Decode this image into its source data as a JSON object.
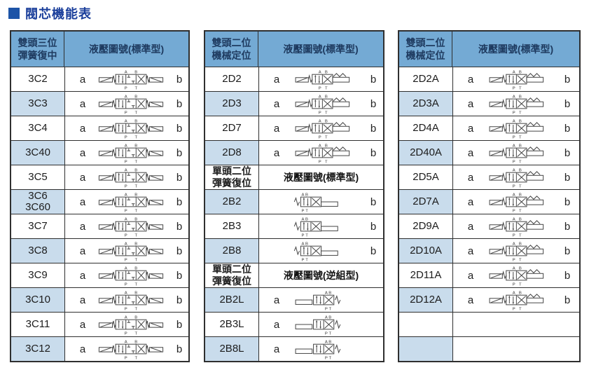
{
  "title": {
    "text": "閥芯機能表"
  },
  "colors": {
    "title_color": "#1b3f9b",
    "title_square": "#1d54a7",
    "header_bg": "#74aad4",
    "header_text": "#1e3a5f",
    "alt_row_bg": "#c9dcec",
    "border": "#2f2f2f",
    "diagram_stroke": "#464646"
  },
  "tables": [
    {
      "header": {
        "col1_line1": "雙頭三位",
        "col1_line2": "彈簧復中",
        "col2": "液壓圖號(標準型)"
      },
      "rows": [
        {
          "type": "row",
          "code": "3C2",
          "code2": "",
          "left": "a",
          "right": "b",
          "diagram": "valve-3pos-spring-centered-icon",
          "shaded": false
        },
        {
          "type": "row",
          "code": "3C3",
          "code2": "",
          "left": "a",
          "right": "b",
          "diagram": "valve-3pos-spring-centered-icon",
          "shaded": true
        },
        {
          "type": "row",
          "code": "3C4",
          "code2": "",
          "left": "a",
          "right": "b",
          "diagram": "valve-3pos-spring-centered-icon",
          "shaded": false
        },
        {
          "type": "row",
          "code": "3C40",
          "code2": "",
          "left": "a",
          "right": "b",
          "diagram": "valve-3pos-spring-centered-icon",
          "shaded": true
        },
        {
          "type": "row",
          "code": "3C5",
          "code2": "",
          "left": "a",
          "right": "b",
          "diagram": "valve-3pos-spring-centered-icon",
          "shaded": false
        },
        {
          "type": "row",
          "code": "3C6",
          "code2": "3C60",
          "left": "a",
          "right": "b",
          "diagram": "valve-3pos-spring-centered-icon",
          "shaded": true
        },
        {
          "type": "row",
          "code": "3C7",
          "code2": "",
          "left": "a",
          "right": "b",
          "diagram": "valve-3pos-spring-centered-icon",
          "shaded": false
        },
        {
          "type": "row",
          "code": "3C8",
          "code2": "",
          "left": "a",
          "right": "b",
          "diagram": "valve-3pos-spring-centered-icon",
          "shaded": true
        },
        {
          "type": "row",
          "code": "3C9",
          "code2": "",
          "left": "a",
          "right": "b",
          "diagram": "valve-3pos-spring-centered-icon",
          "shaded": false
        },
        {
          "type": "row",
          "code": "3C10",
          "code2": "",
          "left": "a",
          "right": "b",
          "diagram": "valve-3pos-spring-centered-icon",
          "shaded": true
        },
        {
          "type": "row",
          "code": "3C11",
          "code2": "",
          "left": "a",
          "right": "b",
          "diagram": "valve-3pos-spring-centered-icon",
          "shaded": false
        },
        {
          "type": "row",
          "code": "3C12",
          "code2": "",
          "left": "a",
          "right": "b",
          "diagram": "valve-3pos-spring-centered-icon",
          "shaded": true
        }
      ]
    },
    {
      "header": {
        "col1_line1": "雙頭二位",
        "col1_line2": "機械定位",
        "col2": "液壓圖號(標準型)"
      },
      "rows": [
        {
          "type": "row",
          "code": "2D2",
          "code2": "",
          "left": "a",
          "right": "b",
          "diagram": "valve-2pos-detent-icon",
          "shaded": false
        },
        {
          "type": "row",
          "code": "2D3",
          "code2": "",
          "left": "a",
          "right": "b",
          "diagram": "valve-2pos-detent-icon",
          "shaded": true
        },
        {
          "type": "row",
          "code": "2D7",
          "code2": "",
          "left": "a",
          "right": "b",
          "diagram": "valve-2pos-detent-icon",
          "shaded": false
        },
        {
          "type": "row",
          "code": "2D8",
          "code2": "",
          "left": "a",
          "right": "b",
          "diagram": "valve-2pos-detent-icon",
          "shaded": true
        },
        {
          "type": "subheader",
          "col1_line1": "單頭二位",
          "col1_line2": "彈簧復位",
          "col2": "液壓圖號(標準型)",
          "shaded": false
        },
        {
          "type": "row",
          "code": "2B2",
          "code2": "",
          "left": "",
          "right": "b",
          "diagram": "valve-2pos-spring-return-icon",
          "shaded": true
        },
        {
          "type": "row",
          "code": "2B3",
          "code2": "",
          "left": "",
          "right": "b",
          "diagram": "valve-2pos-spring-return-icon",
          "shaded": false
        },
        {
          "type": "row",
          "code": "2B8",
          "code2": "",
          "left": "",
          "right": "b",
          "diagram": "valve-2pos-spring-return-icon",
          "shaded": true
        },
        {
          "type": "subheader",
          "col1_line1": "單頭二位",
          "col1_line2": "彈簧復位",
          "col2": "液壓圖號(逆組型)",
          "shaded": false
        },
        {
          "type": "row",
          "code": "2B2L",
          "code2": "",
          "left": "a",
          "right": "",
          "diagram": "valve-2pos-spring-return-reverse-icon",
          "shaded": true
        },
        {
          "type": "row",
          "code": "2B3L",
          "code2": "",
          "left": "a",
          "right": "",
          "diagram": "valve-2pos-spring-return-reverse-icon",
          "shaded": false
        },
        {
          "type": "row",
          "code": "2B8L",
          "code2": "",
          "left": "a",
          "right": "",
          "diagram": "valve-2pos-spring-return-reverse-icon",
          "shaded": true
        }
      ]
    },
    {
      "header": {
        "col1_line1": "雙頭二位",
        "col1_line2": "機械定位",
        "col2": "液壓圖號(標準型)"
      },
      "rows": [
        {
          "type": "row",
          "code": "2D2A",
          "code2": "",
          "left": "a",
          "right": "b",
          "diagram": "valve-2pos-detent-icon",
          "shaded": false
        },
        {
          "type": "row",
          "code": "2D3A",
          "code2": "",
          "left": "a",
          "right": "b",
          "diagram": "valve-2pos-detent-icon",
          "shaded": true
        },
        {
          "type": "row",
          "code": "2D4A",
          "code2": "",
          "left": "a",
          "right": "b",
          "diagram": "valve-2pos-detent-icon",
          "shaded": false
        },
        {
          "type": "row",
          "code": "2D40A",
          "code2": "",
          "left": "a",
          "right": "b",
          "diagram": "valve-2pos-detent-icon",
          "shaded": true
        },
        {
          "type": "row",
          "code": "2D5A",
          "code2": "",
          "left": "a",
          "right": "b",
          "diagram": "valve-2pos-detent-icon",
          "shaded": false
        },
        {
          "type": "row",
          "code": "2D7A",
          "code2": "",
          "left": "a",
          "right": "b",
          "diagram": "valve-2pos-detent-icon",
          "shaded": true
        },
        {
          "type": "row",
          "code": "2D9A",
          "code2": "",
          "left": "a",
          "right": "b",
          "diagram": "valve-2pos-detent-icon",
          "shaded": false
        },
        {
          "type": "row",
          "code": "2D10A",
          "code2": "",
          "left": "a",
          "right": "b",
          "diagram": "valve-2pos-detent-icon",
          "shaded": true
        },
        {
          "type": "row",
          "code": "2D11A",
          "code2": "",
          "left": "a",
          "right": "b",
          "diagram": "valve-2pos-detent-icon",
          "shaded": false
        },
        {
          "type": "row",
          "code": "2D12A",
          "code2": "",
          "left": "a",
          "right": "b",
          "diagram": "valve-2pos-detent-icon",
          "shaded": true
        },
        {
          "type": "empty",
          "shaded": false
        },
        {
          "type": "empty",
          "shaded": true
        }
      ]
    }
  ]
}
